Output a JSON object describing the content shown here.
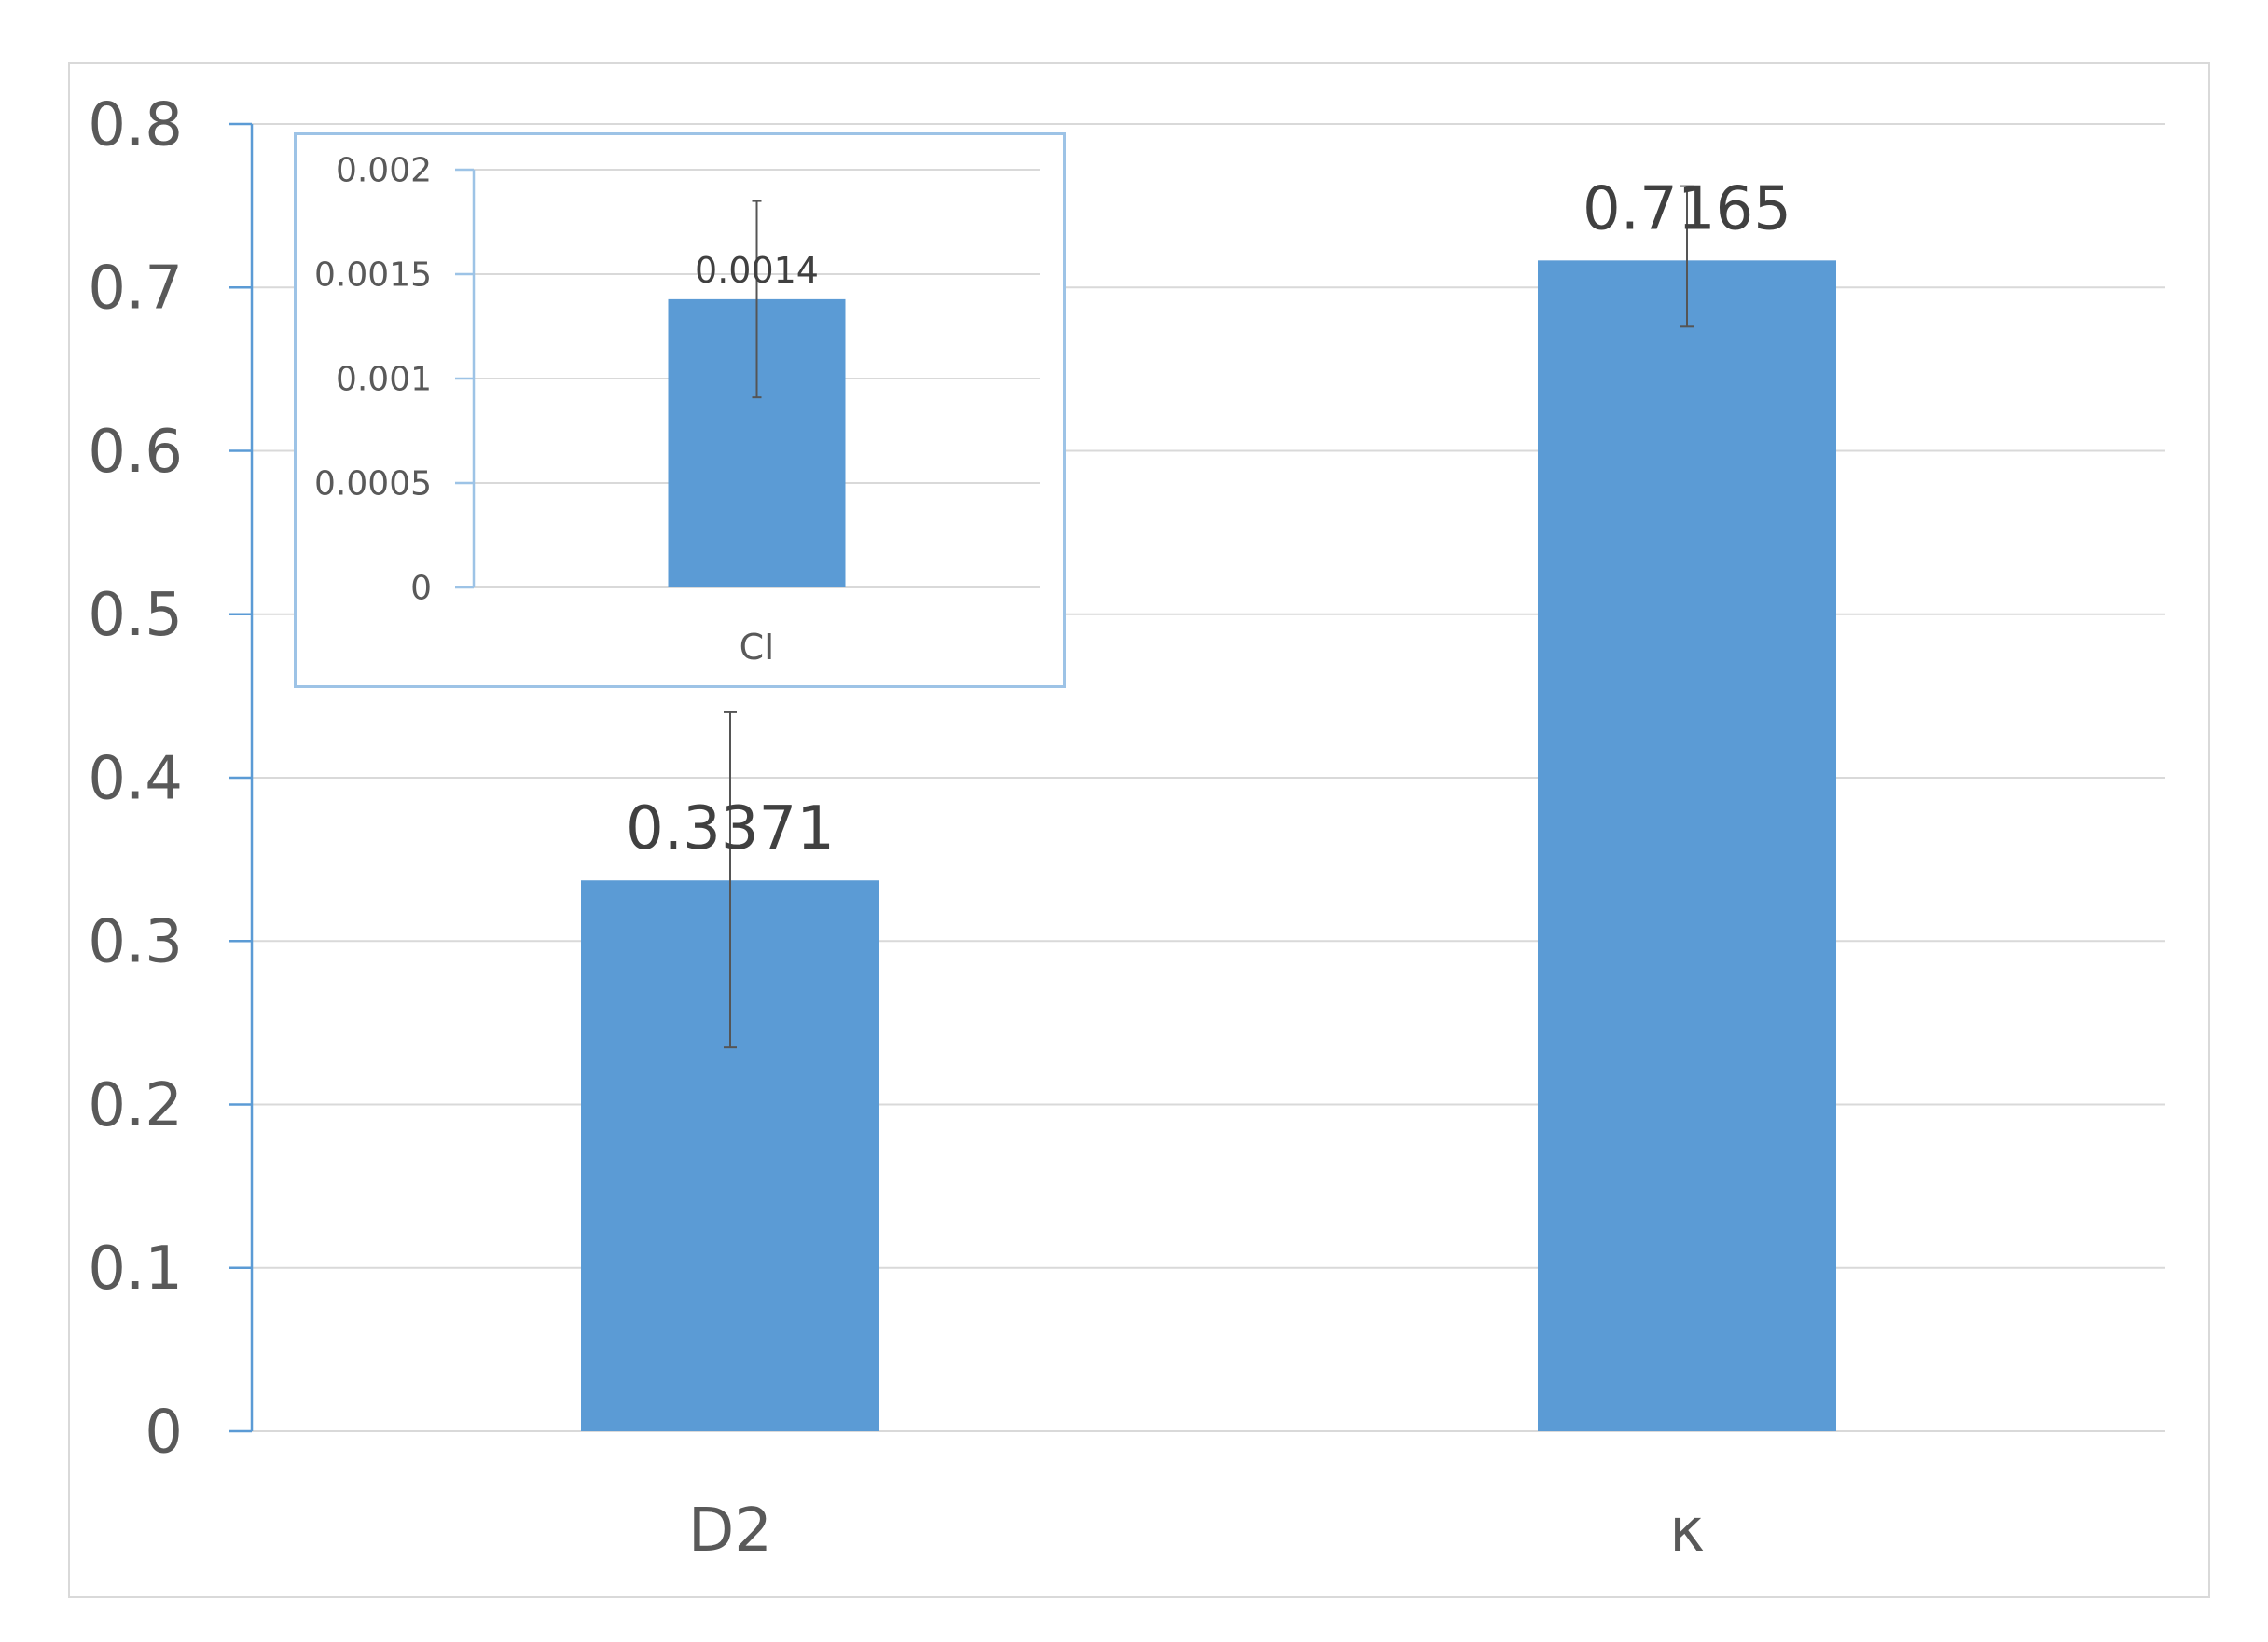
{
  "chart_data": [
    {
      "id": "main",
      "type": "bar",
      "categories": [
        "D2",
        "κ"
      ],
      "values": [
        0.3371,
        0.7165
      ],
      "data_labels": [
        "0.3371",
        "0.7165"
      ],
      "error_bars": [
        [
          0.235,
          0.44
        ],
        [
          0.676,
          0.762
        ]
      ],
      "ylim": [
        0,
        0.8
      ],
      "yticks": [
        0,
        0.1,
        0.2,
        0.3,
        0.4,
        0.5,
        0.6,
        0.7,
        0.8
      ],
      "ytick_labels": [
        "0",
        "0.1",
        "0.2",
        "0.3",
        "0.4",
        "0.5",
        "0.6",
        "0.7",
        "0.8"
      ],
      "grid": true,
      "bar_color": "#5b9bd5"
    },
    {
      "id": "inset",
      "type": "bar",
      "categories": [
        "CI"
      ],
      "values": [
        0.00138
      ],
      "data_labels": [
        "0.0014"
      ],
      "error_bars": [
        [
          0.00091,
          0.00185
        ]
      ],
      "ylim": [
        0,
        0.002
      ],
      "yticks": [
        0,
        0.0005,
        0.001,
        0.0015,
        0.002
      ],
      "ytick_labels": [
        "0",
        "0.0005",
        "0.001",
        "0.0015",
        "0.002"
      ],
      "grid": true,
      "bar_color": "#5b9bd5"
    }
  ]
}
